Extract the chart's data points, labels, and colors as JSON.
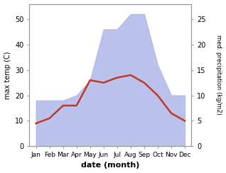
{
  "months": [
    "Jan",
    "Feb",
    "Mar",
    "Apr",
    "May",
    "Jun",
    "Jul",
    "Aug",
    "Sep",
    "Oct",
    "Nov",
    "Dec"
  ],
  "temperature": [
    9,
    11,
    16,
    16,
    26,
    25,
    27,
    28,
    25,
    20,
    13,
    10
  ],
  "precipitation": [
    9,
    9,
    9,
    10,
    13,
    23,
    23,
    26,
    26,
    16,
    10,
    10
  ],
  "temp_color": "#c0392b",
  "precip_fill_color": "#b0b8e8",
  "temp_ylim": [
    0,
    56
  ],
  "precip_ylim": [
    0,
    28
  ],
  "temp_yticks": [
    0,
    10,
    20,
    30,
    40,
    50
  ],
  "precip_yticks": [
    0,
    5,
    10,
    15,
    20,
    25
  ],
  "xlabel": "date (month)",
  "ylabel_left": "max temp (C)",
  "ylabel_right": "med. precipitation (kg/m2)",
  "bg_color": "#ffffff",
  "spine_color": "#999999"
}
